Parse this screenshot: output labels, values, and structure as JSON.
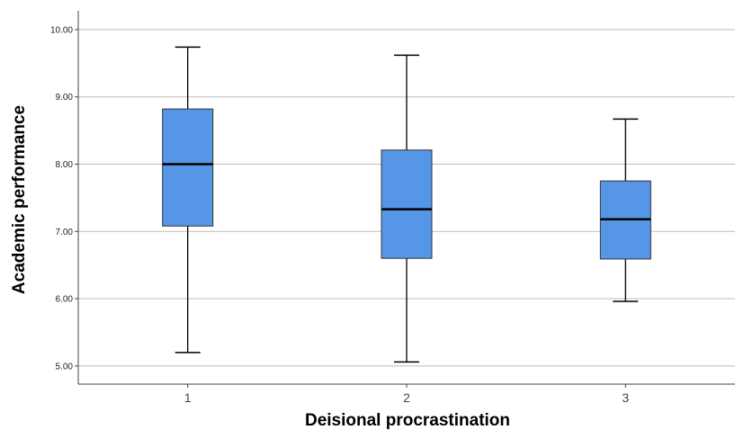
{
  "chart_data": {
    "type": "boxplot",
    "title": "",
    "xlabel": "Deisional procrastination",
    "ylabel": "Academic performance",
    "ylim": [
      4.73,
      10.28
    ],
    "grid": true,
    "yticks": [
      "5.00",
      "6.00",
      "7.00",
      "8.00",
      "9.00",
      "10.00"
    ],
    "ytick_values": [
      5,
      6,
      7,
      8,
      9,
      10
    ],
    "categories": [
      "1",
      "2",
      "3"
    ],
    "boxes": [
      {
        "category": "1",
        "min": 5.2,
        "q1": 7.08,
        "median": 8.0,
        "q3": 8.82,
        "max": 9.74
      },
      {
        "category": "2",
        "min": 5.06,
        "q1": 6.6,
        "median": 7.33,
        "q3": 8.21,
        "max": 9.62
      },
      {
        "category": "3",
        "min": 5.96,
        "q1": 6.59,
        "median": 7.18,
        "q3": 7.75,
        "max": 8.67
      }
    ],
    "colors": {
      "box_fill": "#5596E6",
      "box_stroke": "#333333",
      "grid": "#BEBEBE",
      "axis": "#444444"
    }
  }
}
